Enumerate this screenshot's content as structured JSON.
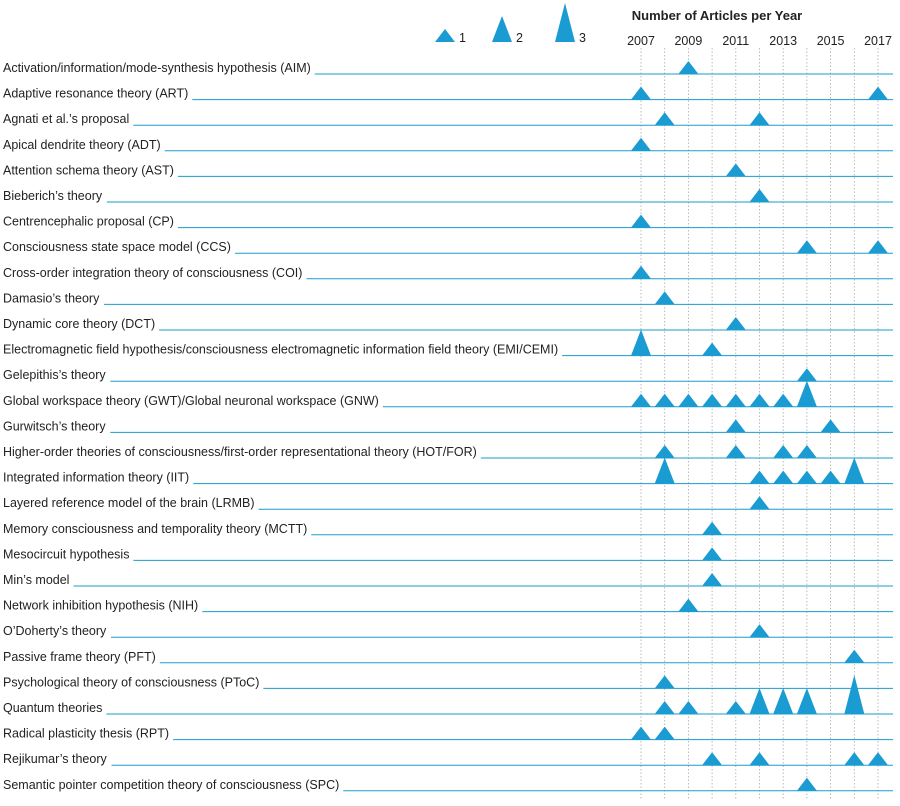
{
  "chart_data": {
    "type": "triangle",
    "title": "Number of Articles per Year",
    "color": "#1a9bd1",
    "grid": true,
    "legend": [
      1,
      2,
      3
    ],
    "x": [
      2007,
      2008,
      2009,
      2010,
      2011,
      2012,
      2013,
      2014,
      2015,
      2016,
      2017
    ],
    "xlim": [
      2007,
      2017
    ],
    "xticks": [
      2007,
      2009,
      2011,
      2013,
      2015,
      2017
    ],
    "categories": [
      "Activation/information/mode-synthesis hypothesis (AIM)",
      "Adaptive resonance theory (ART)",
      "Agnati et al.’s proposal",
      "Apical dendrite theory (ADT)",
      "Attention schema theory (AST)",
      "Bieberich’s theory",
      "Centrencephalic proposal (CP)",
      "Consciousness state space model (CCS)",
      "Cross-order integration theory of consciousness (COI)",
      "Damasio’s theory",
      "Dynamic core theory (DCT)",
      "Electromagnetic field hypothesis/consciousness electromagnetic information field theory (EMI/CEMI)",
      "Gelepithis’s theory",
      "Global workspace theory (GWT)/Global neuronal workspace (GNW)",
      "Gurwitsch’s theory",
      "Higher-order theories of consciousness/first-order representational theory (HOT/FOR)",
      "Integrated information theory (IIT)",
      "Layered reference model of the brain (LRMB)",
      "Memory consciousness and temporality theory (MCTT)",
      "Mesocircuit hypothesis",
      "Min’s model",
      "Network inhibition hypothesis (NIH)",
      "O’Doherty’s theory",
      "Passive frame theory (PFT)",
      "Psychological theory of consciousness (PToC)",
      "Quantum theories",
      "Radical plasticity thesis (RPT)",
      "Rejikumar’s theory",
      "Semantic pointer competition theory of consciousness (SPC)"
    ],
    "values": [
      [
        null,
        null,
        1,
        null,
        null,
        null,
        null,
        null,
        null,
        null,
        null
      ],
      [
        1,
        null,
        null,
        null,
        null,
        null,
        null,
        null,
        null,
        null,
        1
      ],
      [
        null,
        1,
        null,
        null,
        null,
        1,
        null,
        null,
        null,
        null,
        null
      ],
      [
        1,
        null,
        null,
        null,
        null,
        null,
        null,
        null,
        null,
        null,
        null
      ],
      [
        null,
        null,
        null,
        null,
        1,
        null,
        null,
        null,
        null,
        null,
        null
      ],
      [
        null,
        null,
        null,
        null,
        null,
        1,
        null,
        null,
        null,
        null,
        null
      ],
      [
        1,
        null,
        null,
        null,
        null,
        null,
        null,
        null,
        null,
        null,
        null
      ],
      [
        null,
        null,
        null,
        null,
        null,
        null,
        null,
        1,
        null,
        null,
        1
      ],
      [
        1,
        null,
        null,
        null,
        null,
        null,
        null,
        null,
        null,
        null,
        null
      ],
      [
        null,
        1,
        null,
        null,
        null,
        null,
        null,
        null,
        null,
        null,
        null
      ],
      [
        null,
        null,
        null,
        null,
        1,
        null,
        null,
        null,
        null,
        null,
        null
      ],
      [
        2,
        null,
        null,
        1,
        null,
        null,
        null,
        null,
        null,
        null,
        null
      ],
      [
        null,
        null,
        null,
        null,
        null,
        null,
        null,
        1,
        null,
        null,
        null
      ],
      [
        1,
        1,
        1,
        1,
        1,
        1,
        1,
        2,
        null,
        null,
        null
      ],
      [
        null,
        null,
        null,
        null,
        1,
        null,
        null,
        null,
        1,
        null,
        null
      ],
      [
        null,
        1,
        null,
        null,
        1,
        null,
        1,
        1,
        null,
        null,
        null
      ],
      [
        null,
        2,
        null,
        null,
        null,
        1,
        1,
        1,
        1,
        2,
        null
      ],
      [
        null,
        null,
        null,
        null,
        null,
        1,
        null,
        null,
        null,
        null,
        null
      ],
      [
        null,
        null,
        null,
        1,
        null,
        null,
        null,
        null,
        null,
        null,
        null
      ],
      [
        null,
        null,
        null,
        1,
        null,
        null,
        null,
        null,
        null,
        null,
        null
      ],
      [
        null,
        null,
        null,
        1,
        null,
        null,
        null,
        null,
        null,
        null,
        null
      ],
      [
        null,
        null,
        1,
        null,
        null,
        null,
        null,
        null,
        null,
        null,
        null
      ],
      [
        null,
        null,
        null,
        null,
        null,
        1,
        null,
        null,
        null,
        null,
        null
      ],
      [
        null,
        null,
        null,
        null,
        null,
        null,
        null,
        null,
        null,
        1,
        null
      ],
      [
        null,
        1,
        null,
        null,
        null,
        null,
        null,
        null,
        null,
        null,
        null
      ],
      [
        null,
        1,
        1,
        null,
        1,
        2,
        2,
        2,
        null,
        3,
        null
      ],
      [
        1,
        1,
        null,
        null,
        null,
        null,
        null,
        null,
        null,
        null,
        null
      ],
      [
        null,
        null,
        null,
        1,
        null,
        1,
        null,
        null,
        null,
        1,
        1
      ],
      [
        null,
        null,
        null,
        null,
        null,
        null,
        null,
        1,
        null,
        null,
        null
      ]
    ]
  }
}
